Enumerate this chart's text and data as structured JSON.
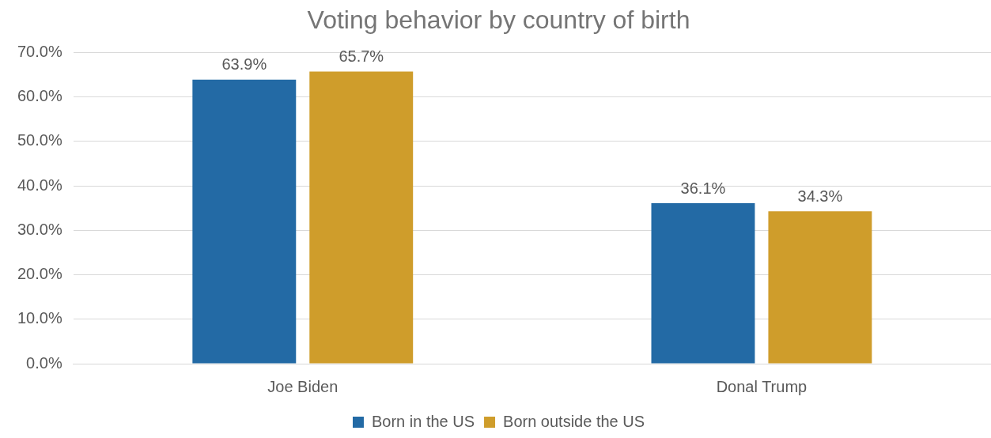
{
  "chart_data": {
    "type": "bar",
    "title": "Voting behavior by country of birth",
    "categories": [
      "Joe Biden",
      "Donal Trump"
    ],
    "series": [
      {
        "name": "Born in the US",
        "color": "#236aa5",
        "values": [
          63.9,
          36.1
        ],
        "value_labels": [
          "63.9%",
          "36.1%"
        ]
      },
      {
        "name": "Born outside the US",
        "color": "#cf9d2b",
        "values": [
          65.7,
          34.3
        ],
        "value_labels": [
          "65.7%",
          "34.3%"
        ]
      }
    ],
    "ylim": [
      0,
      70
    ],
    "yticks": [
      {
        "value": 0,
        "label": "0.0%"
      },
      {
        "value": 10,
        "label": "10.0%"
      },
      {
        "value": 20,
        "label": "20.0%"
      },
      {
        "value": 30,
        "label": "30.0%"
      },
      {
        "value": 40,
        "label": "40.0%"
      },
      {
        "value": 50,
        "label": "50.0%"
      },
      {
        "value": 60,
        "label": "60.0%"
      },
      {
        "value": 70,
        "label": "70.0%"
      }
    ],
    "grid": "y",
    "legend": "bottom"
  }
}
